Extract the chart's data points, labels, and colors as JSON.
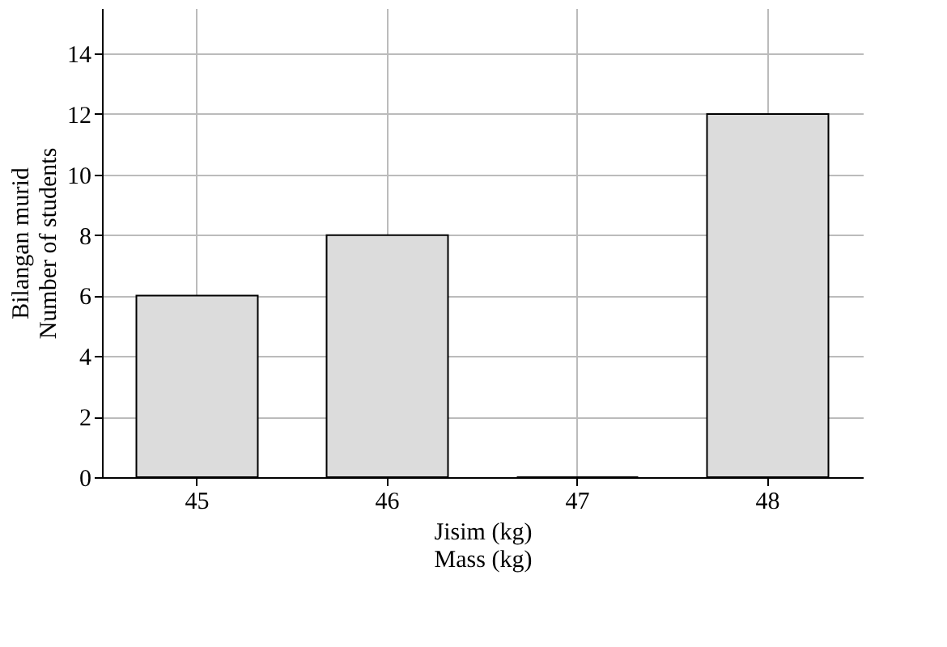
{
  "chart_data": {
    "type": "bar",
    "categories": [
      "45",
      "46",
      "47",
      "48"
    ],
    "values": [
      6,
      8,
      0,
      12
    ],
    "color": "#dcdcdc",
    "xlabel": [
      "Jisim (kg)",
      "Mass (kg)"
    ],
    "ylabel": [
      "Bilangan murid",
      "Number of students"
    ],
    "ylim": [
      0,
      15.5
    ],
    "yticks": [
      0,
      2,
      4,
      6,
      8,
      10,
      12,
      14
    ],
    "grid": true
  }
}
